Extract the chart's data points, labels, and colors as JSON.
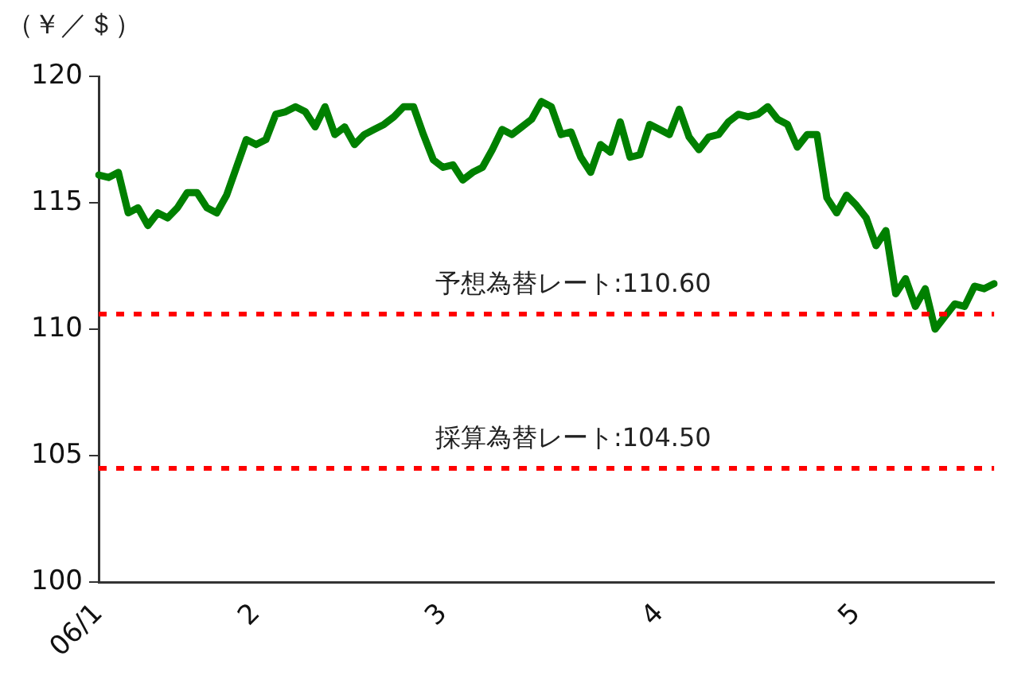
{
  "chart_data": {
    "type": "line",
    "ylabel": "（￥／＄）",
    "categories": [
      "06/1",
      null,
      null,
      null,
      null,
      null,
      null,
      null,
      null,
      null,
      null,
      null,
      null,
      null,
      null,
      null,
      "2",
      null,
      null,
      null,
      null,
      null,
      null,
      null,
      null,
      null,
      null,
      null,
      null,
      null,
      null,
      null,
      null,
      null,
      null,
      "3",
      null,
      null,
      null,
      null,
      null,
      null,
      null,
      null,
      null,
      null,
      null,
      null,
      null,
      null,
      null,
      null,
      null,
      null,
      null,
      null,
      null,
      "4",
      null,
      null,
      null,
      null,
      null,
      null,
      null,
      null,
      null,
      null,
      null,
      null,
      null,
      null,
      null,
      null,
      null,
      null,
      null,
      "5",
      null,
      null,
      null,
      null,
      null,
      null,
      null,
      null,
      null,
      null,
      null,
      null,
      null,
      null
    ],
    "series": [
      {
        "color": "#008000",
        "values": [
          116.1,
          116.0,
          116.2,
          114.6,
          114.8,
          114.1,
          114.6,
          114.4,
          114.8,
          115.4,
          115.4,
          114.8,
          114.6,
          115.3,
          116.4,
          117.5,
          117.3,
          117.5,
          118.5,
          118.6,
          118.8,
          118.6,
          118.0,
          118.8,
          117.7,
          118.0,
          117.3,
          117.7,
          117.9,
          118.1,
          118.4,
          118.8,
          118.8,
          117.7,
          116.7,
          116.4,
          116.5,
          115.9,
          116.2,
          116.4,
          117.1,
          117.9,
          117.7,
          118.0,
          118.3,
          119.0,
          118.8,
          117.7,
          117.8,
          116.8,
          116.2,
          117.3,
          117.0,
          118.2,
          116.8,
          116.9,
          118.1,
          117.9,
          117.7,
          118.7,
          117.6,
          117.1,
          117.6,
          117.7,
          118.2,
          118.5,
          118.4,
          118.5,
          118.8,
          118.3,
          118.1,
          117.2,
          117.7,
          117.7,
          115.2,
          114.6,
          115.3,
          114.9,
          114.4,
          113.3,
          113.9,
          111.4,
          112.0,
          110.9,
          111.6,
          110.0,
          110.5,
          111.0,
          110.9,
          111.7,
          111.6,
          111.8
        ]
      }
    ],
    "ylim": [
      100,
      120
    ],
    "yticks": [
      100,
      105,
      110,
      115,
      120
    ],
    "grid": false,
    "legend": false,
    "marker": "none",
    "line_style": "solid",
    "ref_lines": [
      {
        "axis": "y",
        "value": 110.6,
        "label": "予想為替レート:110.60",
        "color": "#ff0000",
        "line_style": "dotted"
      },
      {
        "axis": "y",
        "value": 104.5,
        "label": "採算為替レート:104.50",
        "color": "#ff0000",
        "line_style": "dotted"
      }
    ]
  }
}
